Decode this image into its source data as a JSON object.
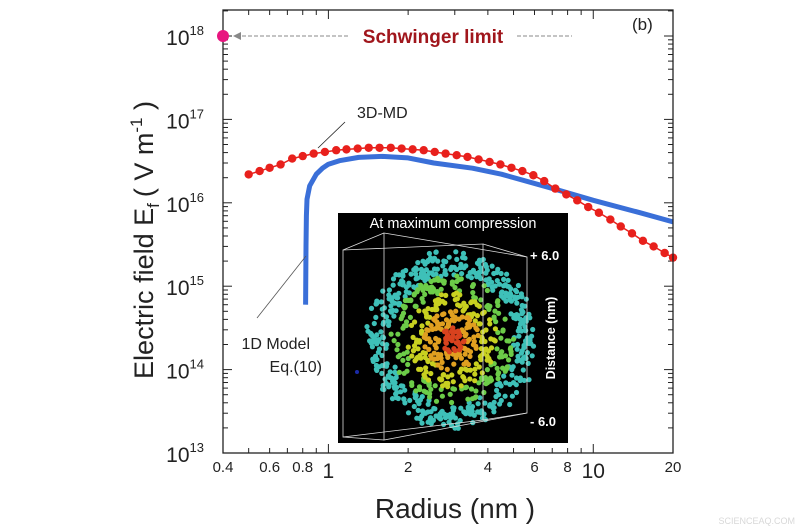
{
  "chart_data": {
    "type": "line",
    "title": "",
    "panel_label": "(b)",
    "xlabel": "Radius (nm )",
    "ylabel": "Electric field E",
    "ylabel_subscript": "f",
    "ylabel_units_open": "( V m",
    "ylabel_units_exp": "-1",
    "ylabel_units_close": " )",
    "x_scale": "log",
    "y_scale": "log",
    "xlim": [
      0.4,
      20
    ],
    "ylim": [
      10000000000000.0,
      2.05e+18
    ],
    "grid": false,
    "x_ticks": [
      {
        "value": 0.4,
        "label": "0.4"
      },
      {
        "value": 0.6,
        "label": "0.6"
      },
      {
        "value": 0.8,
        "label": "0.8"
      },
      {
        "value": 1,
        "label": "1"
      },
      {
        "value": 2,
        "label": "2"
      },
      {
        "value": 4,
        "label": "4"
      },
      {
        "value": 6,
        "label": "6"
      },
      {
        "value": 8,
        "label": "8"
      },
      {
        "value": 10,
        "label": "10"
      },
      {
        "value": 20,
        "label": "20"
      }
    ],
    "y_ticks": [
      {
        "value": 10000000000000.0,
        "base": "10",
        "exp": "13"
      },
      {
        "value": 100000000000000.0,
        "base": "10",
        "exp": "14"
      },
      {
        "value": 1000000000000000.0,
        "base": "10",
        "exp": "15"
      },
      {
        "value": 1e+16,
        "base": "10",
        "exp": "16"
      },
      {
        "value": 1e+17,
        "base": "10",
        "exp": "17"
      },
      {
        "value": 1e+18,
        "base": "10",
        "exp": "18"
      }
    ],
    "series": [
      {
        "name": "3D-MD",
        "style": "line-markers",
        "color": "#e8201c",
        "x": [
          0.5,
          0.55,
          0.6,
          0.66,
          0.73,
          0.8,
          0.88,
          0.97,
          1.07,
          1.17,
          1.29,
          1.42,
          1.56,
          1.72,
          1.89,
          2.08,
          2.29,
          2.52,
          2.77,
          3.05,
          3.35,
          3.69,
          4.06,
          4.46,
          4.91,
          5.4,
          5.94,
          6.53,
          7.19,
          7.91,
          8.7,
          9.57,
          10.5,
          11.6,
          12.7,
          14.0,
          15.4,
          16.9,
          18.6,
          20.0
        ],
        "y": [
          2.19e+16,
          2.4e+16,
          2.63e+16,
          2.88e+16,
          3.39e+16,
          3.63e+16,
          3.89e+16,
          4.07e+16,
          4.27e+16,
          4.37e+16,
          4.47e+16,
          4.57e+16,
          4.57e+16,
          4.57e+16,
          4.47e+16,
          4.37e+16,
          4.27e+16,
          4.07e+16,
          3.89e+16,
          3.72e+16,
          3.55e+16,
          3.31e+16,
          3.09e+16,
          2.88e+16,
          2.63e+16,
          2.4e+16,
          2.14e+16,
          1.82e+16,
          1.48e+16,
          1.26e+16,
          1.07e+16,
          8900000000000000.0,
          7600000000000000.0,
          6300000000000000.0,
          5200000000000000.0,
          4300000000000000.0,
          3500000000000000.0,
          3000000000000000.0,
          2500000000000000.0,
          2200000000000000.0
        ]
      },
      {
        "name": "1D Model Eq.(10)",
        "style": "line",
        "color": "#3a6fd8",
        "x": [
          0.82,
          0.823,
          0.826,
          0.83,
          0.85,
          0.9,
          0.95,
          1.0,
          1.1,
          1.3,
          1.6,
          2.0,
          2.5,
          3.5,
          4.5,
          7.2,
          10,
          15,
          20
        ],
        "y": [
          600000000000000.0,
          3000000000000000.0,
          7000000000000000.0,
          1.1e+16,
          1.6e+16,
          2.2e+16,
          2.6e+16,
          2.9e+16,
          3.2e+16,
          3.5e+16,
          3.6e+16,
          3.45e+16,
          3e+16,
          2.6e+16,
          2.2e+16,
          1.45e+16,
          1.07e+16,
          7600000000000000.0,
          5900000000000000.0
        ]
      }
    ],
    "annotations": [
      {
        "id": "schwinger",
        "text": "Schwinger limit",
        "x": 0.4,
        "y": 1e+18,
        "color": "#a0161c",
        "marker_color": "#e8157f"
      },
      {
        "id": "md_label",
        "text": "3D-MD"
      },
      {
        "id": "model_label_line1",
        "text": "1D Model"
      },
      {
        "id": "model_label_line2",
        "text": "Eq.(10)"
      }
    ],
    "inset": {
      "title": "At maximum compression",
      "top_label": "+ 6.0",
      "bottom_label": "- 6.0",
      "axis_label": "Distance (nm)"
    }
  },
  "watermark": "SCIENCEAQ.COM"
}
